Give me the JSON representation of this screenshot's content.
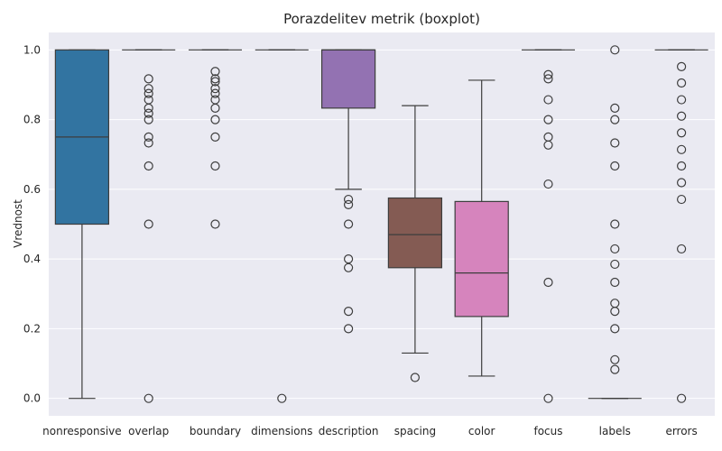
{
  "chart_data": {
    "type": "boxplot",
    "title": "Porazdelitev metrik (boxplot)",
    "xlabel": "",
    "ylabel": "Vrednost",
    "ylim": [
      -0.05,
      1.05
    ],
    "yticks": [
      "0.0",
      "0.2",
      "0.4",
      "0.6",
      "0.8",
      "1.0"
    ],
    "grid": true,
    "series": [
      {
        "name": "nonresponsive",
        "color": "#3274a1",
        "whislo": 0.0,
        "q1": 0.5,
        "med": 0.75,
        "q3": 1.0,
        "whishi": 1.0,
        "fliers": []
      },
      {
        "name": "overlap",
        "color": "#e1812c",
        "whislo": 1.0,
        "q1": 1.0,
        "med": 1.0,
        "q3": 1.0,
        "whishi": 1.0,
        "fliers": [
          0.917,
          0.889,
          0.875,
          0.857,
          0.833,
          0.818,
          0.8,
          0.75,
          0.733,
          0.667,
          0.5,
          0.0
        ]
      },
      {
        "name": "boundary",
        "color": "#3a923a",
        "whislo": 1.0,
        "q1": 1.0,
        "med": 1.0,
        "q3": 1.0,
        "whishi": 1.0,
        "fliers": [
          0.938,
          0.917,
          0.909,
          0.889,
          0.875,
          0.857,
          0.833,
          0.8,
          0.75,
          0.667,
          0.5
        ]
      },
      {
        "name": "dimensions",
        "color": "#c03d3e",
        "whislo": 1.0,
        "q1": 1.0,
        "med": 1.0,
        "q3": 1.0,
        "whishi": 1.0,
        "fliers": [
          0.0
        ]
      },
      {
        "name": "description",
        "color": "#9372b2",
        "whislo": 0.6,
        "q1": 0.833,
        "med": 1.0,
        "q3": 1.0,
        "whishi": 1.0,
        "fliers": [
          0.571,
          0.556,
          0.5,
          0.4,
          0.375,
          0.25,
          0.2
        ]
      },
      {
        "name": "spacing",
        "color": "#845b53",
        "whislo": 0.13,
        "q1": 0.375,
        "med": 0.47,
        "q3": 0.575,
        "whishi": 0.84,
        "fliers": [
          0.06
        ]
      },
      {
        "name": "color",
        "color": "#d684bd",
        "whislo": 0.064,
        "q1": 0.235,
        "med": 0.36,
        "q3": 0.565,
        "whishi": 0.913,
        "fliers": []
      },
      {
        "name": "focus",
        "color": "#7f7f7f",
        "whislo": 1.0,
        "q1": 1.0,
        "med": 1.0,
        "q3": 1.0,
        "whishi": 1.0,
        "fliers": [
          0.929,
          0.917,
          0.857,
          0.8,
          0.75,
          0.727,
          0.615,
          0.333,
          0.0
        ]
      },
      {
        "name": "labels",
        "color": "#a9aa35",
        "whislo": 0.0,
        "q1": 0.0,
        "med": 0.0,
        "q3": 0.0,
        "whishi": 0.0,
        "fliers": [
          1.0,
          0.833,
          0.8,
          0.733,
          0.667,
          0.5,
          0.429,
          0.385,
          0.333,
          0.273,
          0.25,
          0.2,
          0.111,
          0.083
        ]
      },
      {
        "name": "errors",
        "color": "#2ea0c2",
        "whislo": 1.0,
        "q1": 1.0,
        "med": 1.0,
        "q3": 1.0,
        "whishi": 1.0,
        "fliers": [
          0.952,
          0.905,
          0.857,
          0.81,
          0.762,
          0.714,
          0.667,
          0.619,
          0.571,
          0.429,
          0.0
        ]
      }
    ]
  }
}
